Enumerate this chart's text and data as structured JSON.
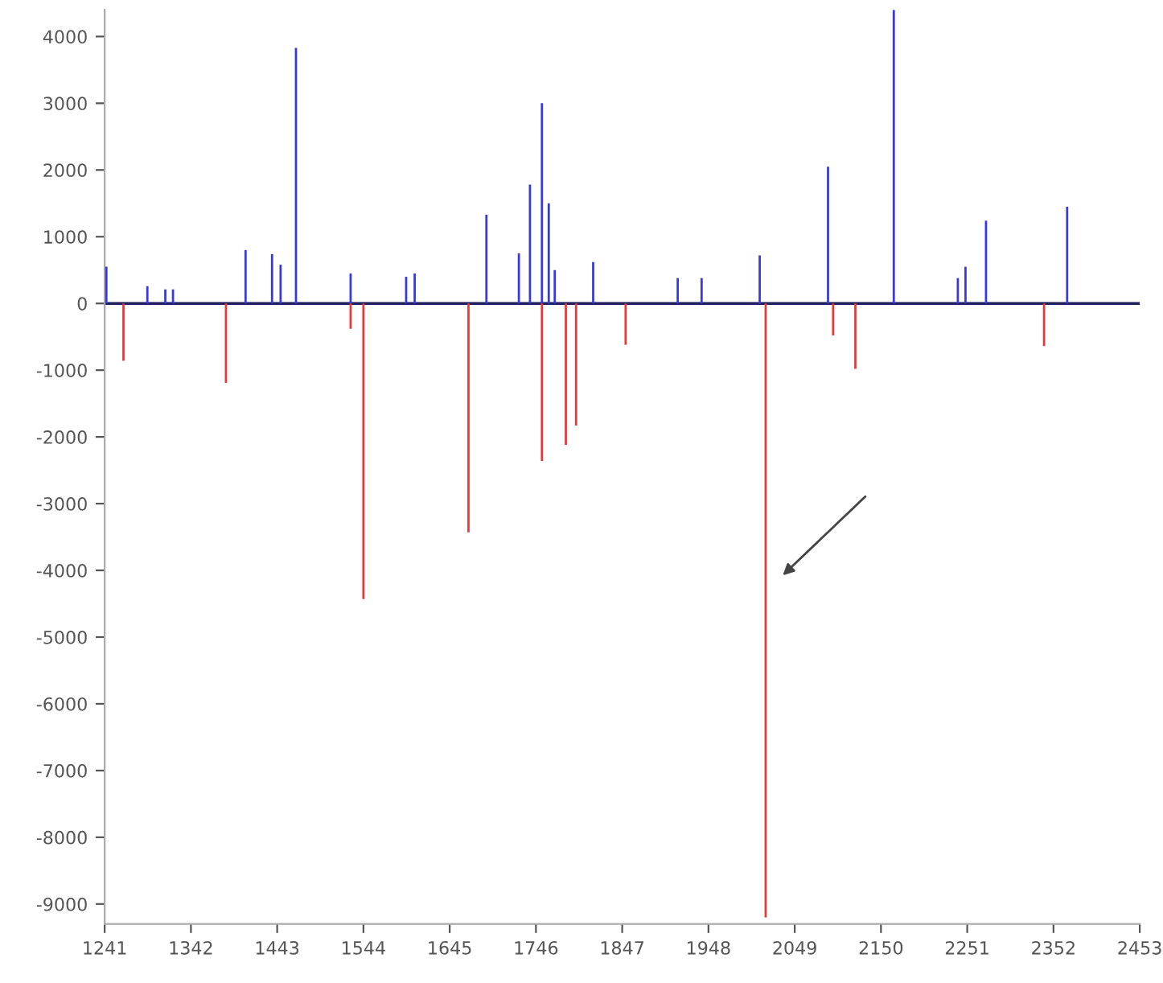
{
  "chart_data": {
    "type": "bar",
    "xlim": [
      1241,
      2453
    ],
    "ylim": [
      -9300,
      4400
    ],
    "xticks": [
      1241,
      1342,
      1443,
      1544,
      1645,
      1746,
      1847,
      1948,
      2049,
      2150,
      2251,
      2352,
      2453
    ],
    "yticks": [
      4000,
      3000,
      2000,
      1000,
      0,
      -1000,
      -2000,
      -3000,
      -4000,
      -5000,
      -6000,
      -7000,
      -8000,
      -9000
    ],
    "grid": false,
    "ref_lines": [
      {
        "axis": "y",
        "value": 0,
        "color": "#202060"
      }
    ],
    "series": [
      {
        "color": "#3838e0",
        "x": [
          1243,
          1291,
          1312,
          1321,
          1406,
          1437,
          1447,
          1465,
          1529,
          1594,
          1604,
          1688,
          1726,
          1739,
          1753,
          1761,
          1768,
          1813,
          1912,
          1940,
          2008,
          2088,
          2165,
          2240,
          2249,
          2273,
          2368
        ],
        "values": [
          550,
          260,
          210,
          210,
          800,
          740,
          580,
          3830,
          450,
          400,
          450,
          1330,
          750,
          1780,
          3000,
          1500,
          500,
          620,
          380,
          380,
          720,
          2050,
          4400,
          380,
          550,
          1240,
          1450
        ]
      },
      {
        "color": "#e83838",
        "x": [
          1263,
          1383,
          1529,
          1544,
          1667,
          1753,
          1781,
          1793,
          1851,
          2015,
          2094,
          2120,
          2341
        ],
        "values": [
          -860,
          -1190,
          -380,
          -4430,
          -3430,
          -2360,
          -2120,
          -1830,
          -620,
          -9200,
          -480,
          -980,
          -640
        ]
      }
    ]
  }
}
